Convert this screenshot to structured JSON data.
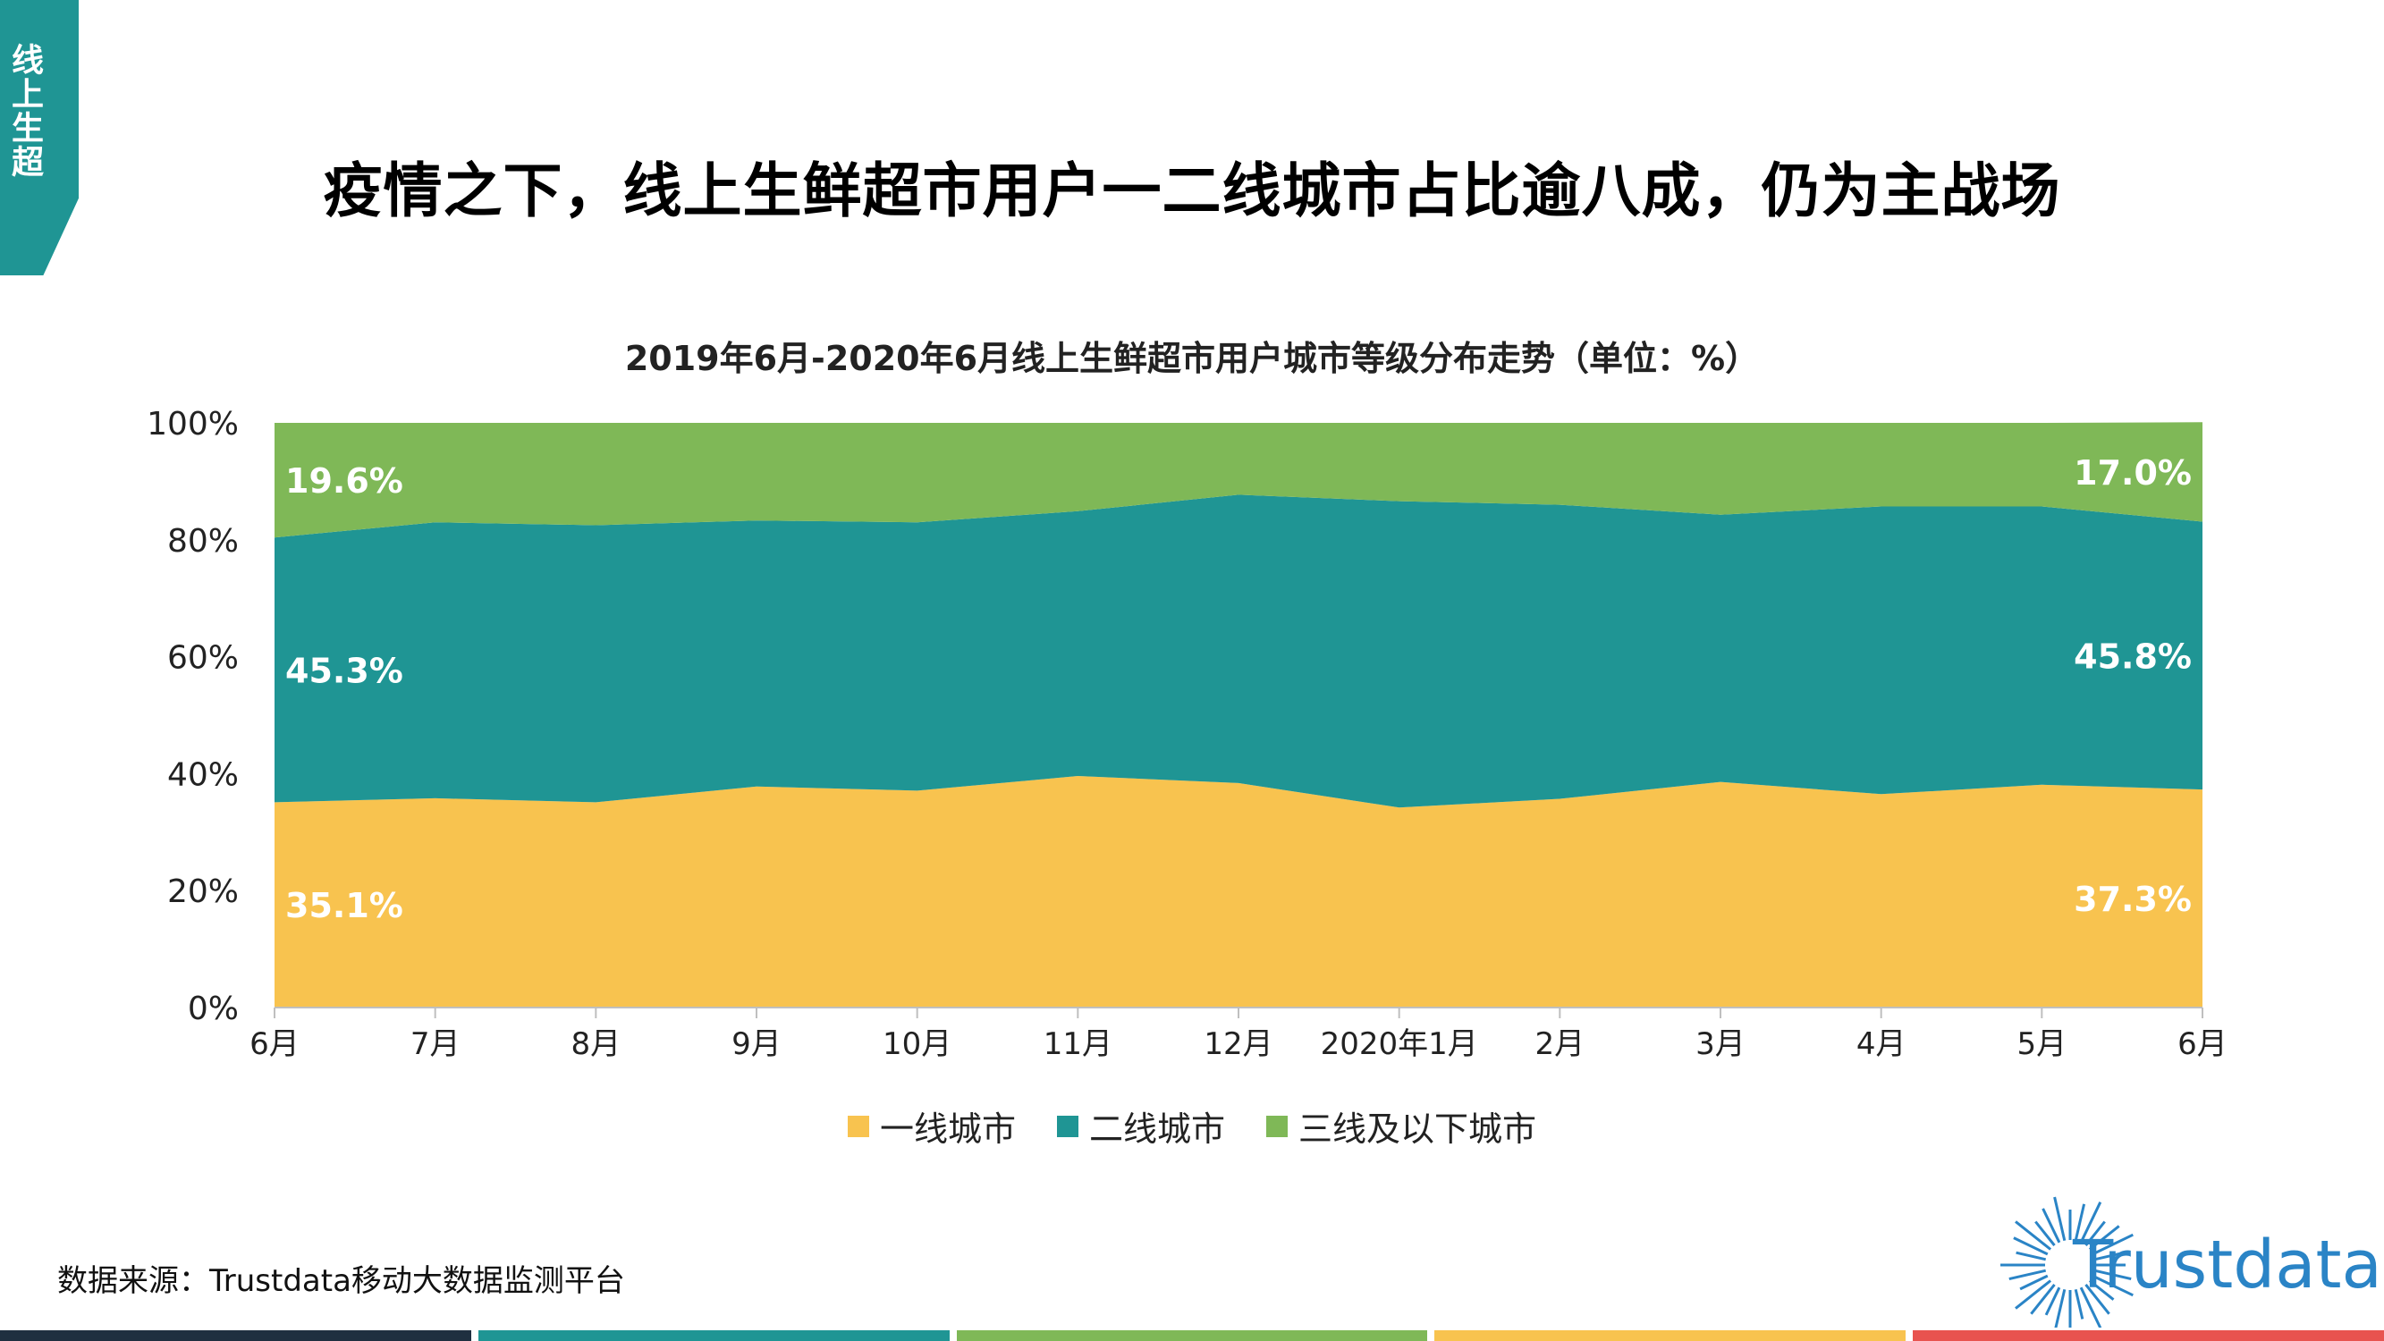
{
  "side_tab": {
    "label": "线上生超"
  },
  "page_title": "疫情之下，线上生鲜超市用户一二线城市占比逾八成，仍为主战场",
  "source": "数据来源：Trustdata移动大数据监测平台",
  "logo_text": "Trustdata",
  "colors": {
    "tier1": "#f8c34f",
    "tier2": "#1f9594",
    "tier3": "#7fb857",
    "tab": "#1f9594",
    "logo": "#2a84c6",
    "bottom_bars": [
      "#1f2f40",
      "#1f9594",
      "#7fb857",
      "#f8c34f",
      "#e8534f"
    ]
  },
  "chart_data": {
    "type": "area",
    "stacked": true,
    "title": "2019年6月-2020年6月线上生鲜超市用户城市等级分布走势（单位：%）",
    "categories": [
      "6月",
      "7月",
      "8月",
      "9月",
      "10月",
      "11月",
      "12月",
      "2020年1月",
      "2月",
      "3月",
      "4月",
      "5月",
      "6月"
    ],
    "ylim": [
      0,
      100
    ],
    "yticks": [
      "0%",
      "20%",
      "40%",
      "60%",
      "80%",
      "100%"
    ],
    "legend_position": "bottom",
    "series": [
      {
        "name": "一线城市",
        "values": [
          35.1,
          35.8,
          35.1,
          37.8,
          37.1,
          39.6,
          38.4,
          34.2,
          35.7,
          38.6,
          36.5,
          38.1,
          37.3
        ]
      },
      {
        "name": "二线城市",
        "values": [
          45.3,
          47.2,
          47.4,
          45.5,
          45.9,
          45.3,
          49.3,
          52.4,
          50.3,
          45.7,
          49.2,
          47.6,
          45.8
        ]
      },
      {
        "name": "三线及以下城市",
        "values": [
          19.6,
          17.0,
          17.5,
          16.7,
          17.0,
          15.1,
          12.3,
          13.4,
          14.0,
          15.7,
          14.3,
          14.3,
          17.0
        ]
      }
    ],
    "data_labels": [
      {
        "series": 0,
        "point": 0,
        "text": "35.1%"
      },
      {
        "series": 1,
        "point": 0,
        "text": "45.3%"
      },
      {
        "series": 2,
        "point": 0,
        "text": "19.6%"
      },
      {
        "series": 0,
        "point": 12,
        "text": "37.3%"
      },
      {
        "series": 1,
        "point": 12,
        "text": "45.8%"
      },
      {
        "series": 2,
        "point": 12,
        "text": "17.0%"
      }
    ]
  }
}
